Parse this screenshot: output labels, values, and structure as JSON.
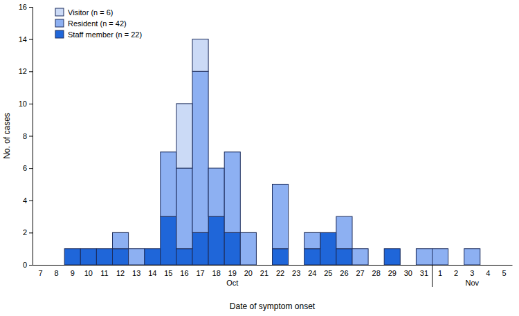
{
  "chart_data": {
    "type": "bar",
    "stacked": true,
    "x_label": "Date of symptom onset",
    "y_label": "No. of cases",
    "annotations": [
      "Oct",
      "Nov"
    ],
    "categories": [
      "7",
      "8",
      "9",
      "10",
      "11",
      "12",
      "13",
      "14",
      "15",
      "16",
      "17",
      "18",
      "19",
      "20",
      "21",
      "22",
      "23",
      "24",
      "25",
      "26",
      "27",
      "28",
      "29",
      "30",
      "31",
      "1",
      "2",
      "3",
      "4",
      "5"
    ],
    "series": [
      {
        "name": "Staff member (n = 22)",
        "color": "#1f66d9",
        "values": [
          0,
          0,
          1,
          1,
          1,
          1,
          0,
          1,
          3,
          1,
          2,
          3,
          2,
          0,
          0,
          1,
          0,
          1,
          2,
          1,
          0,
          0,
          1,
          0,
          0,
          0,
          0,
          0,
          0,
          0
        ]
      },
      {
        "name": "Resident (n = 42)",
        "color": "#8db0f2",
        "values": [
          0,
          0,
          0,
          0,
          0,
          1,
          1,
          0,
          4,
          5,
          10,
          3,
          5,
          2,
          0,
          4,
          0,
          1,
          0,
          2,
          1,
          0,
          0,
          0,
          1,
          1,
          0,
          1,
          0,
          0
        ]
      },
      {
        "name": "Visitor (n = 6)",
        "color": "#cbdaf6",
        "values": [
          0,
          0,
          0,
          0,
          0,
          0,
          0,
          0,
          0,
          4,
          2,
          0,
          0,
          0,
          0,
          0,
          0,
          0,
          0,
          0,
          0,
          0,
          0,
          0,
          0,
          0,
          0,
          0,
          0,
          0
        ]
      }
    ],
    "ylim": [
      0,
      16
    ],
    "yticks": [
      0,
      2,
      4,
      6,
      8,
      10,
      12,
      14,
      16
    ],
    "grid": false,
    "legend": "top-left"
  }
}
